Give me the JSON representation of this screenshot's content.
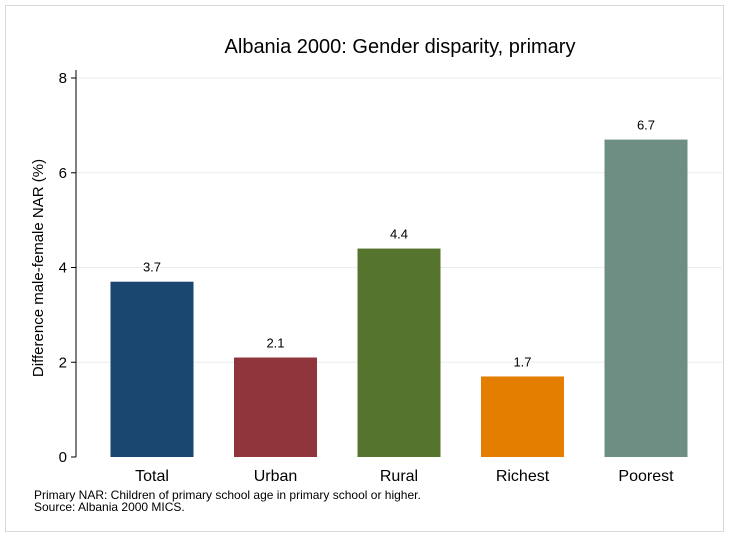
{
  "chart_data": {
    "type": "bar",
    "title": "Albania 2000: Gender disparity, primary",
    "ylabel": "Difference male-female NAR (%)",
    "xlabel": "",
    "categories": [
      "Total",
      "Urban",
      "Rural",
      "Richest",
      "Poorest"
    ],
    "values": [
      3.7,
      2.1,
      4.4,
      1.7,
      6.7
    ],
    "value_labels": [
      "3.7",
      "2.1",
      "4.4",
      "1.7",
      "6.7"
    ],
    "ylim": [
      0,
      8
    ],
    "yticks": [
      0,
      2,
      4,
      6,
      8
    ],
    "grid": true,
    "legend": "none",
    "colors": [
      "#1a476f",
      "#90353b",
      "#55752f",
      "#e37e00",
      "#6e8e84"
    ]
  },
  "notes": {
    "line1": "Primary NAR: Children of primary school age in primary school or higher.",
    "line2": "Source: Albania 2000 MICS."
  }
}
